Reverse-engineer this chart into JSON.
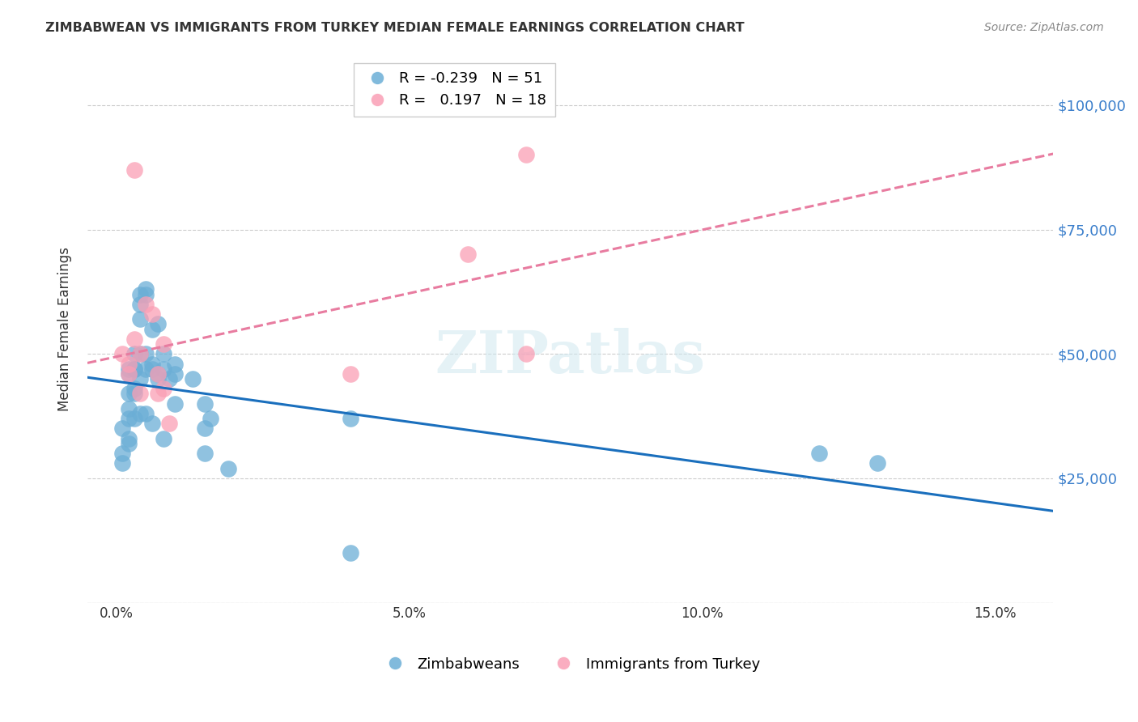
{
  "title": "ZIMBABWEAN VS IMMIGRANTS FROM TURKEY MEDIAN FEMALE EARNINGS CORRELATION CHART",
  "source": "Source: ZipAtlas.com",
  "xlabel_ticks": [
    "0.0%",
    "5.0%",
    "10.0%",
    "15.0%"
  ],
  "xlabel_tick_vals": [
    0.0,
    0.05,
    0.1,
    0.15
  ],
  "ylabel": "Median Female Earnings",
  "ylim": [
    0,
    110000
  ],
  "xlim": [
    -0.005,
    0.16
  ],
  "ytick_vals": [
    0,
    25000,
    50000,
    75000,
    100000
  ],
  "ytick_labels": [
    "",
    "$25,000",
    "$50,000",
    "$75,000",
    "$100,000"
  ],
  "blue_color": "#6baed6",
  "pink_color": "#fa9fb5",
  "trendline_blue": "#1a6fbd",
  "trendline_pink": "#e87ca0",
  "legend_R_blue": "-0.239",
  "legend_N_blue": "51",
  "legend_R_pink": "0.197",
  "legend_N_pink": "18",
  "watermark": "ZIPatlas",
  "blue_x": [
    0.001,
    0.001,
    0.001,
    0.002,
    0.002,
    0.002,
    0.002,
    0.002,
    0.002,
    0.002,
    0.003,
    0.003,
    0.003,
    0.003,
    0.003,
    0.003,
    0.004,
    0.004,
    0.004,
    0.004,
    0.004,
    0.004,
    0.005,
    0.005,
    0.005,
    0.005,
    0.005,
    0.006,
    0.006,
    0.006,
    0.006,
    0.007,
    0.007,
    0.007,
    0.008,
    0.008,
    0.008,
    0.009,
    0.01,
    0.01,
    0.01,
    0.013,
    0.015,
    0.015,
    0.015,
    0.016,
    0.019,
    0.04,
    0.04,
    0.12,
    0.13
  ],
  "blue_y": [
    35000,
    28000,
    30000,
    32000,
    47000,
    42000,
    46000,
    39000,
    37000,
    33000,
    47000,
    50000,
    47000,
    43000,
    42000,
    37000,
    62000,
    60000,
    57000,
    50000,
    45000,
    38000,
    63000,
    62000,
    50000,
    47000,
    38000,
    55000,
    48000,
    47000,
    36000,
    56000,
    46000,
    45000,
    50000,
    47000,
    33000,
    45000,
    48000,
    46000,
    40000,
    45000,
    40000,
    35000,
    30000,
    37000,
    27000,
    10000,
    37000,
    30000,
    28000
  ],
  "pink_x": [
    0.001,
    0.002,
    0.002,
    0.003,
    0.003,
    0.004,
    0.004,
    0.005,
    0.006,
    0.007,
    0.007,
    0.008,
    0.008,
    0.009,
    0.04,
    0.06,
    0.07,
    0.07
  ],
  "pink_y": [
    50000,
    48000,
    46000,
    87000,
    53000,
    50000,
    42000,
    60000,
    58000,
    46000,
    42000,
    52000,
    43000,
    36000,
    46000,
    70000,
    90000,
    50000
  ]
}
